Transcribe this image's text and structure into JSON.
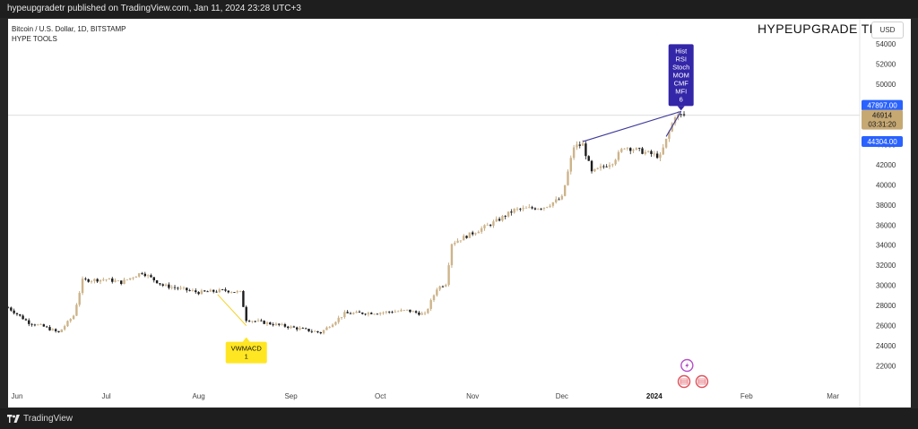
{
  "header": {
    "publish_text": "hypeupgradetr published on TradingView.com, Jan 11, 2024 23:28 UTC+3"
  },
  "legend": {
    "symbol_line": "Bitcoin / U.S. Dollar, 1D, BITSTAMP",
    "indicator": "HYPE TOOLS"
  },
  "watermark": "HYPEUPGRADE TR",
  "currency_button": "USD",
  "footer": {
    "brand": "TradingView"
  },
  "colors": {
    "up_body": "#cdb48a",
    "up_wick": "#b99a66",
    "down_body": "#1c1c1c",
    "trendline": "#3e3a9a",
    "label_purple": "#3326a8",
    "label_yellow": "#ffe623",
    "yellow_line": "#f4d32a",
    "price_blue": "#2962ff",
    "price_tan": "#c6a873",
    "event_purple": "#b44fc7",
    "event_red": "#e0505a"
  },
  "chart_data": {
    "type": "candlestick",
    "ylim": [
      20000,
      56500
    ],
    "y_ticks": [
      22000,
      24000,
      26000,
      28000,
      30000,
      32000,
      34000,
      36000,
      38000,
      40000,
      42000,
      44000,
      46000,
      48000,
      50000,
      52000,
      54000
    ],
    "y_tick_labels": [
      "22000",
      "24000",
      "26000",
      "28000",
      "30000",
      "32000",
      "34000",
      "36000",
      "38000",
      "40000",
      "42000",
      "44000",
      "46000",
      "48000",
      "50000",
      "52000",
      "54000"
    ],
    "x_range": [
      "2023-05-29",
      "2024-03-10"
    ],
    "x_ticks": [
      {
        "date": "2023-06-01",
        "label": "Jun",
        "bold": false
      },
      {
        "date": "2023-07-01",
        "label": "Jul",
        "bold": false
      },
      {
        "date": "2023-08-01",
        "label": "Aug",
        "bold": false
      },
      {
        "date": "2023-09-01",
        "label": "Sep",
        "bold": false
      },
      {
        "date": "2023-10-01",
        "label": "Oct",
        "bold": false
      },
      {
        "date": "2023-11-01",
        "label": "Nov",
        "bold": false
      },
      {
        "date": "2023-12-01",
        "label": "Dec",
        "bold": false
      },
      {
        "date": "2024-01-01",
        "label": "2024",
        "bold": true
      },
      {
        "date": "2024-02-01",
        "label": "Feb",
        "bold": false
      },
      {
        "date": "2024-03-01",
        "label": "Mar",
        "bold": false
      }
    ],
    "price_anchors": [
      {
        "date": "2023-05-29",
        "close": 27800
      },
      {
        "date": "2023-06-05",
        "close": 26300
      },
      {
        "date": "2023-06-10",
        "close": 25900
      },
      {
        "date": "2023-06-15",
        "close": 25300
      },
      {
        "date": "2023-06-20",
        "close": 27000
      },
      {
        "date": "2023-06-23",
        "close": 30500
      },
      {
        "date": "2023-07-01",
        "close": 30600
      },
      {
        "date": "2023-07-06",
        "close": 30300
      },
      {
        "date": "2023-07-13",
        "close": 31300
      },
      {
        "date": "2023-07-20",
        "close": 30000
      },
      {
        "date": "2023-08-01",
        "close": 29300
      },
      {
        "date": "2023-08-10",
        "close": 29500
      },
      {
        "date": "2023-08-15",
        "close": 29300
      },
      {
        "date": "2023-08-17",
        "close": 26600
      },
      {
        "date": "2023-08-31",
        "close": 25900
      },
      {
        "date": "2023-09-11",
        "close": 25300
      },
      {
        "date": "2023-09-19",
        "close": 27200
      },
      {
        "date": "2023-10-01",
        "close": 27300
      },
      {
        "date": "2023-10-10",
        "close": 27500
      },
      {
        "date": "2023-10-16",
        "close": 27100
      },
      {
        "date": "2023-10-20",
        "close": 29700
      },
      {
        "date": "2023-10-23",
        "close": 30200
      },
      {
        "date": "2023-10-25",
        "close": 34200
      },
      {
        "date": "2023-11-01",
        "close": 35200
      },
      {
        "date": "2023-11-09",
        "close": 36400
      },
      {
        "date": "2023-11-15",
        "close": 37500
      },
      {
        "date": "2023-11-25",
        "close": 37800
      },
      {
        "date": "2023-12-01",
        "close": 38700
      },
      {
        "date": "2023-12-05",
        "close": 43800
      },
      {
        "date": "2023-12-08",
        "close": 44000
      },
      {
        "date": "2023-12-11",
        "close": 41200
      },
      {
        "date": "2023-12-18",
        "close": 42300
      },
      {
        "date": "2023-12-22",
        "close": 43800
      },
      {
        "date": "2024-01-03",
        "close": 42800
      },
      {
        "date": "2024-01-08",
        "close": 46900
      },
      {
        "date": "2024-01-11",
        "close": 46914
      }
    ],
    "current_price": {
      "label": "46914",
      "value": 46914,
      "countdown": "03:31:20"
    },
    "price_labels": [
      {
        "label": "47897.00",
        "value": 47897
      },
      {
        "label": "44304.00",
        "value": 44304
      }
    ],
    "horizontal_line": 46914,
    "annotations": [
      {
        "lines": [
          "VWMACD",
          "1"
        ],
        "date": "2023-08-17",
        "value": 26000,
        "style": "yellow"
      },
      {
        "lines": [
          "Hist",
          "RSI",
          "Stoch",
          "MOM",
          "CMF",
          "MFI",
          "6"
        ],
        "date": "2024-01-10",
        "value": 47300,
        "style": "purple"
      }
    ],
    "trendlines": [
      {
        "from": {
          "date": "2023-12-08",
          "value": 44300
        },
        "to": {
          "date": "2024-01-10",
          "value": 47300
        }
      },
      {
        "from": {
          "date": "2024-01-05",
          "value": 44800
        },
        "to": {
          "date": "2024-01-10",
          "value": 47300
        }
      }
    ],
    "events": [
      {
        "date": "2024-01-12",
        "icon": "lightning-icon"
      },
      {
        "date": "2024-01-11",
        "icon": "us-flag-icon"
      },
      {
        "date": "2024-01-17",
        "icon": "us-flag-icon"
      }
    ]
  }
}
